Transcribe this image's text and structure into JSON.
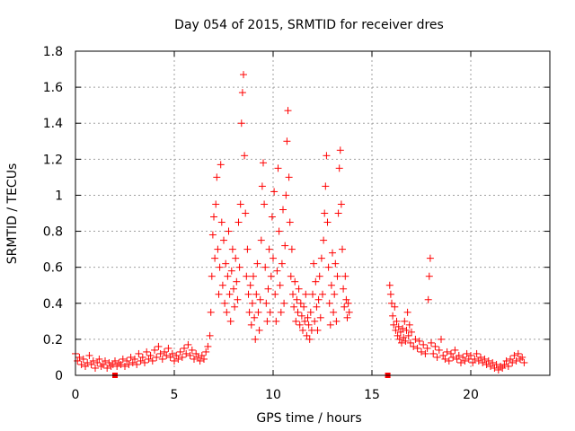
{
  "chart_data": {
    "type": "scatter",
    "title": "Day 054 of 2015, SRMTID for receiver dres",
    "xlabel": "GPS time / hours",
    "ylabel": "SRMTID / TECUs",
    "xlim": [
      0,
      24
    ],
    "ylim": [
      0,
      1.8
    ],
    "xticks": [
      0,
      5,
      10,
      15,
      20
    ],
    "xtick_labels": [
      "0",
      "5",
      "10",
      "15",
      "20"
    ],
    "yticks": [
      0,
      0.2,
      0.4,
      0.6,
      0.8,
      1.0,
      1.2,
      1.4,
      1.6,
      1.8
    ],
    "ytick_labels": [
      "0",
      "0.2",
      "0.4",
      "0.6",
      "0.8",
      "1",
      "1.2",
      "1.4",
      "1.6",
      "1.8"
    ],
    "grid": true,
    "marker": "+",
    "color": "#ff0000",
    "square_markers": [
      [
        2.0,
        0.0
      ],
      [
        15.8,
        0.0
      ]
    ],
    "series": [
      {
        "name": "SRMTID",
        "points": [
          [
            0.0,
            0.12
          ],
          [
            0.1,
            0.08
          ],
          [
            0.2,
            0.1
          ],
          [
            0.3,
            0.06
          ],
          [
            0.4,
            0.09
          ],
          [
            0.5,
            0.05
          ],
          [
            0.6,
            0.07
          ],
          [
            0.7,
            0.11
          ],
          [
            0.8,
            0.06
          ],
          [
            0.9,
            0.08
          ],
          [
            1.0,
            0.04
          ],
          [
            1.1,
            0.07
          ],
          [
            1.2,
            0.09
          ],
          [
            1.3,
            0.05
          ],
          [
            1.4,
            0.06
          ],
          [
            1.5,
            0.08
          ],
          [
            1.6,
            0.04
          ],
          [
            1.7,
            0.07
          ],
          [
            1.8,
            0.05
          ],
          [
            1.9,
            0.06
          ],
          [
            2.0,
            0.08
          ],
          [
            2.1,
            0.05
          ],
          [
            2.2,
            0.07
          ],
          [
            2.3,
            0.06
          ],
          [
            2.4,
            0.09
          ],
          [
            2.5,
            0.05
          ],
          [
            2.6,
            0.08
          ],
          [
            2.7,
            0.06
          ],
          [
            2.8,
            0.1
          ],
          [
            2.9,
            0.07
          ],
          [
            3.0,
            0.09
          ],
          [
            3.1,
            0.06
          ],
          [
            3.2,
            0.12
          ],
          [
            3.3,
            0.08
          ],
          [
            3.4,
            0.1
          ],
          [
            3.5,
            0.07
          ],
          [
            3.6,
            0.13
          ],
          [
            3.7,
            0.09
          ],
          [
            3.8,
            0.11
          ],
          [
            3.9,
            0.08
          ],
          [
            4.0,
            0.14
          ],
          [
            4.1,
            0.1
          ],
          [
            4.2,
            0.16
          ],
          [
            4.3,
            0.12
          ],
          [
            4.4,
            0.09
          ],
          [
            4.5,
            0.13
          ],
          [
            4.6,
            0.11
          ],
          [
            4.7,
            0.15
          ],
          [
            4.8,
            0.1
          ],
          [
            4.9,
            0.12
          ],
          [
            5.0,
            0.08
          ],
          [
            5.1,
            0.11
          ],
          [
            5.2,
            0.09
          ],
          [
            5.3,
            0.13
          ],
          [
            5.4,
            0.1
          ],
          [
            5.5,
            0.15
          ],
          [
            5.6,
            0.12
          ],
          [
            5.7,
            0.17
          ],
          [
            5.8,
            0.11
          ],
          [
            5.9,
            0.14
          ],
          [
            6.0,
            0.09
          ],
          [
            6.1,
            0.12
          ],
          [
            6.2,
            0.1
          ],
          [
            6.3,
            0.08
          ],
          [
            6.4,
            0.11
          ],
          [
            6.5,
            0.09
          ],
          [
            6.6,
            0.13
          ],
          [
            6.7,
            0.16
          ],
          [
            6.8,
            0.22
          ],
          [
            6.85,
            0.35
          ],
          [
            6.9,
            0.55
          ],
          [
            6.95,
            0.78
          ],
          [
            7.0,
            0.88
          ],
          [
            7.05,
            0.65
          ],
          [
            7.1,
            0.95
          ],
          [
            7.15,
            1.1
          ],
          [
            7.2,
            0.7
          ],
          [
            7.25,
            0.45
          ],
          [
            7.3,
            0.6
          ],
          [
            7.35,
            1.17
          ],
          [
            7.4,
            0.85
          ],
          [
            7.45,
            0.5
          ],
          [
            7.5,
            0.75
          ],
          [
            7.55,
            0.4
          ],
          [
            7.6,
            0.62
          ],
          [
            7.65,
            0.35
          ],
          [
            7.7,
            0.55
          ],
          [
            7.75,
            0.8
          ],
          [
            7.8,
            0.45
          ],
          [
            7.85,
            0.3
          ],
          [
            7.9,
            0.58
          ],
          [
            7.95,
            0.7
          ],
          [
            8.0,
            0.48
          ],
          [
            8.05,
            0.38
          ],
          [
            8.1,
            0.65
          ],
          [
            8.15,
            0.52
          ],
          [
            8.2,
            0.42
          ],
          [
            8.25,
            0.85
          ],
          [
            8.3,
            0.6
          ],
          [
            8.35,
            0.95
          ],
          [
            8.4,
            1.4
          ],
          [
            8.45,
            1.57
          ],
          [
            8.5,
            1.67
          ],
          [
            8.55,
            1.22
          ],
          [
            8.6,
            0.9
          ],
          [
            8.65,
            0.55
          ],
          [
            8.7,
            0.7
          ],
          [
            8.75,
            0.45
          ],
          [
            8.8,
            0.35
          ],
          [
            8.85,
            0.5
          ],
          [
            8.9,
            0.28
          ],
          [
            8.95,
            0.4
          ],
          [
            9.0,
            0.55
          ],
          [
            9.05,
            0.32
          ],
          [
            9.1,
            0.2
          ],
          [
            9.15,
            0.45
          ],
          [
            9.2,
            0.62
          ],
          [
            9.25,
            0.35
          ],
          [
            9.3,
            0.25
          ],
          [
            9.35,
            0.42
          ],
          [
            9.4,
            0.75
          ],
          [
            9.45,
            1.05
          ],
          [
            9.5,
            1.18
          ],
          [
            9.55,
            0.95
          ],
          [
            9.6,
            0.6
          ],
          [
            9.65,
            0.4
          ],
          [
            9.7,
            0.3
          ],
          [
            9.75,
            0.48
          ],
          [
            9.8,
            0.7
          ],
          [
            9.85,
            0.35
          ],
          [
            9.9,
            0.55
          ],
          [
            9.95,
            0.88
          ],
          [
            10.0,
            0.65
          ],
          [
            10.05,
            1.02
          ],
          [
            10.1,
            0.45
          ],
          [
            10.15,
            0.3
          ],
          [
            10.2,
            0.58
          ],
          [
            10.25,
            1.15
          ],
          [
            10.3,
            0.8
          ],
          [
            10.35,
            0.5
          ],
          [
            10.4,
            0.35
          ],
          [
            10.45,
            0.62
          ],
          [
            10.5,
            0.92
          ],
          [
            10.55,
            0.4
          ],
          [
            10.6,
            0.72
          ],
          [
            10.65,
            1.0
          ],
          [
            10.7,
            1.3
          ],
          [
            10.75,
            1.47
          ],
          [
            10.8,
            1.1
          ],
          [
            10.85,
            0.85
          ],
          [
            10.9,
            0.55
          ],
          [
            10.95,
            0.7
          ],
          [
            11.0,
            0.45
          ],
          [
            11.05,
            0.38
          ],
          [
            11.1,
            0.52
          ],
          [
            11.15,
            0.3
          ],
          [
            11.2,
            0.42
          ],
          [
            11.25,
            0.35
          ],
          [
            11.3,
            0.48
          ],
          [
            11.35,
            0.28
          ],
          [
            11.4,
            0.4
          ],
          [
            11.45,
            0.33
          ],
          [
            11.5,
            0.25
          ],
          [
            11.55,
            0.38
          ],
          [
            11.6,
            0.3
          ],
          [
            11.65,
            0.45
          ],
          [
            11.7,
            0.22
          ],
          [
            11.75,
            0.32
          ],
          [
            11.8,
            0.28
          ],
          [
            11.85,
            0.2
          ],
          [
            11.9,
            0.35
          ],
          [
            11.95,
            0.25
          ],
          [
            12.0,
            0.45
          ],
          [
            12.05,
            0.62
          ],
          [
            12.1,
            0.3
          ],
          [
            12.15,
            0.52
          ],
          [
            12.2,
            0.38
          ],
          [
            12.25,
            0.25
          ],
          [
            12.3,
            0.42
          ],
          [
            12.35,
            0.55
          ],
          [
            12.4,
            0.32
          ],
          [
            12.45,
            0.65
          ],
          [
            12.5,
            0.45
          ],
          [
            12.55,
            0.75
          ],
          [
            12.6,
            0.9
          ],
          [
            12.65,
            1.05
          ],
          [
            12.7,
            1.22
          ],
          [
            12.75,
            0.85
          ],
          [
            12.8,
            0.6
          ],
          [
            12.85,
            0.4
          ],
          [
            12.9,
            0.28
          ],
          [
            12.95,
            0.5
          ],
          [
            13.0,
            0.68
          ],
          [
            13.05,
            0.35
          ],
          [
            13.1,
            0.45
          ],
          [
            13.15,
            0.62
          ],
          [
            13.2,
            0.3
          ],
          [
            13.25,
            0.55
          ],
          [
            13.3,
            0.9
          ],
          [
            13.35,
            1.15
          ],
          [
            13.4,
            1.25
          ],
          [
            13.45,
            0.95
          ],
          [
            13.5,
            0.7
          ],
          [
            13.55,
            0.48
          ],
          [
            13.6,
            0.38
          ],
          [
            13.65,
            0.55
          ],
          [
            13.7,
            0.42
          ],
          [
            13.75,
            0.32
          ],
          [
            13.8,
            0.4
          ],
          [
            13.85,
            0.35
          ],
          [
            15.9,
            0.5
          ],
          [
            15.95,
            0.45
          ],
          [
            16.0,
            0.4
          ],
          [
            16.05,
            0.33
          ],
          [
            16.1,
            0.28
          ],
          [
            16.15,
            0.38
          ],
          [
            16.2,
            0.25
          ],
          [
            16.25,
            0.3
          ],
          [
            16.3,
            0.22
          ],
          [
            16.35,
            0.27
          ],
          [
            16.4,
            0.2
          ],
          [
            16.45,
            0.24
          ],
          [
            16.5,
            0.18
          ],
          [
            16.55,
            0.26
          ],
          [
            16.6,
            0.21
          ],
          [
            16.65,
            0.3
          ],
          [
            16.7,
            0.19
          ],
          [
            16.75,
            0.25
          ],
          [
            16.8,
            0.35
          ],
          [
            16.85,
            0.22
          ],
          [
            16.9,
            0.28
          ],
          [
            16.95,
            0.18
          ],
          [
            17.0,
            0.24
          ],
          [
            17.1,
            0.16
          ],
          [
            17.2,
            0.2
          ],
          [
            17.3,
            0.15
          ],
          [
            17.4,
            0.19
          ],
          [
            17.5,
            0.13
          ],
          [
            17.6,
            0.17
          ],
          [
            17.7,
            0.12
          ],
          [
            17.8,
            0.15
          ],
          [
            17.85,
            0.42
          ],
          [
            17.9,
            0.55
          ],
          [
            17.95,
            0.65
          ],
          [
            18.0,
            0.18
          ],
          [
            18.1,
            0.12
          ],
          [
            18.2,
            0.16
          ],
          [
            18.3,
            0.1
          ],
          [
            18.4,
            0.14
          ],
          [
            18.5,
            0.2
          ],
          [
            18.6,
            0.11
          ],
          [
            18.7,
            0.09
          ],
          [
            18.8,
            0.13
          ],
          [
            18.9,
            0.08
          ],
          [
            19.0,
            0.12
          ],
          [
            19.1,
            0.1
          ],
          [
            19.2,
            0.14
          ],
          [
            19.3,
            0.09
          ],
          [
            19.4,
            0.11
          ],
          [
            19.5,
            0.07
          ],
          [
            19.6,
            0.1
          ],
          [
            19.7,
            0.08
          ],
          [
            19.8,
            0.12
          ],
          [
            19.9,
            0.09
          ],
          [
            20.0,
            0.11
          ],
          [
            20.1,
            0.07
          ],
          [
            20.2,
            0.09
          ],
          [
            20.3,
            0.12
          ],
          [
            20.4,
            0.08
          ],
          [
            20.5,
            0.1
          ],
          [
            20.6,
            0.07
          ],
          [
            20.7,
            0.09
          ],
          [
            20.8,
            0.06
          ],
          [
            20.9,
            0.08
          ],
          [
            21.0,
            0.05
          ],
          [
            21.1,
            0.07
          ],
          [
            21.2,
            0.04
          ],
          [
            21.3,
            0.06
          ],
          [
            21.4,
            0.03
          ],
          [
            21.5,
            0.05
          ],
          [
            21.6,
            0.04
          ],
          [
            21.7,
            0.06
          ],
          [
            21.8,
            0.08
          ],
          [
            21.9,
            0.05
          ],
          [
            22.0,
            0.09
          ],
          [
            22.1,
            0.07
          ],
          [
            22.2,
            0.11
          ],
          [
            22.3,
            0.08
          ],
          [
            22.4,
            0.12
          ],
          [
            22.5,
            0.09
          ],
          [
            22.6,
            0.1
          ],
          [
            22.7,
            0.07
          ]
        ]
      }
    ]
  }
}
